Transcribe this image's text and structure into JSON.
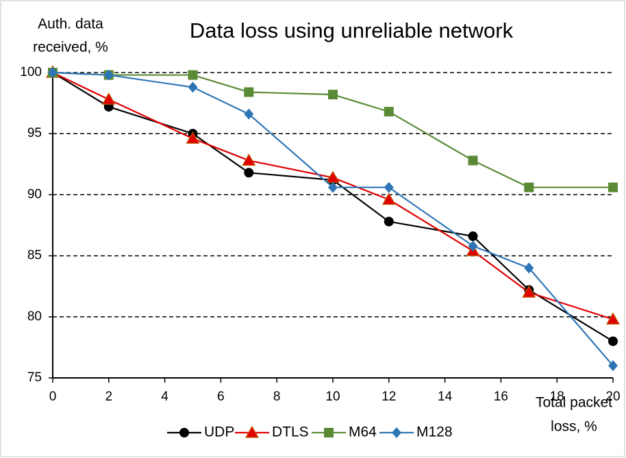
{
  "chart_data": {
    "type": "line",
    "title": "Data loss using unreliable network",
    "ylabel": [
      "Auth. data",
      "received, %"
    ],
    "xlabel": [
      "Total packet",
      "loss, %"
    ],
    "x": [
      0,
      2,
      5,
      7,
      10,
      12,
      15,
      17,
      20
    ],
    "series": [
      {
        "name": "UDP",
        "color": "#000000",
        "marker": "circle",
        "values": [
          100,
          97.2,
          95.0,
          91.8,
          91.2,
          87.8,
          86.6,
          82.2,
          78.0
        ]
      },
      {
        "name": "DTLS",
        "color": "#e00000",
        "marker": "triangle",
        "values": [
          100,
          97.8,
          94.6,
          92.8,
          91.4,
          89.6,
          85.4,
          82.0,
          79.8
        ]
      },
      {
        "name": "M64",
        "color": "#5a8a35",
        "marker": "square",
        "values": [
          100,
          99.8,
          99.8,
          98.4,
          98.2,
          96.8,
          92.8,
          90.6,
          90.6
        ]
      },
      {
        "name": "M128",
        "color": "#2e75b6",
        "marker": "diamond",
        "values": [
          100,
          99.8,
          98.8,
          96.6,
          90.6,
          90.6,
          85.8,
          84.0,
          76.0
        ]
      }
    ],
    "xlim": [
      0,
      20
    ],
    "xticks": [
      0,
      2,
      4,
      6,
      8,
      10,
      12,
      14,
      16,
      18,
      20
    ],
    "ylim": [
      75,
      100
    ],
    "yticks": [
      75,
      80,
      85,
      90,
      95,
      100
    ],
    "grid": true,
    "legend": "bottom"
  }
}
